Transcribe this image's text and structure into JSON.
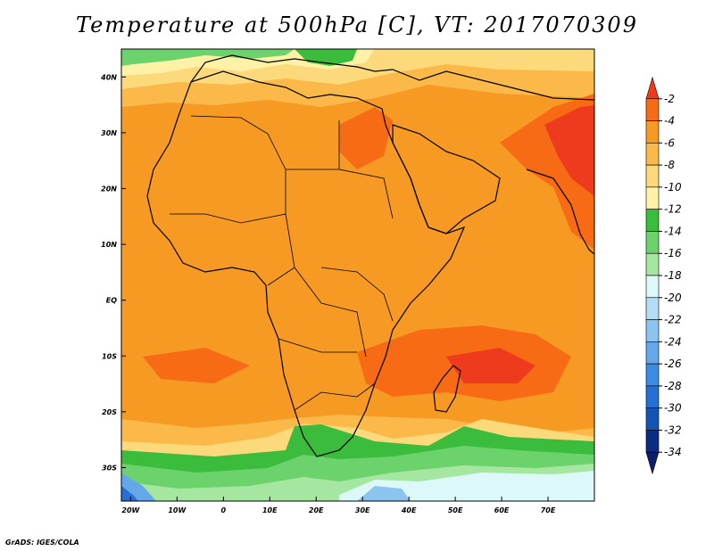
{
  "title": "Temperature at 500hPa [C], VT: 2017070309",
  "footer": "GrADS: IGES/COLA",
  "map": {
    "lon_range": [
      -22,
      80
    ],
    "lat_range": [
      -36,
      45
    ],
    "x_ticks": [
      "20W",
      "10W",
      "0",
      "10E",
      "20E",
      "30E",
      "40E",
      "50E",
      "60E",
      "70E"
    ],
    "y_ticks": [
      "40N",
      "30N",
      "20N",
      "10N",
      "EQ",
      "10S",
      "20S",
      "30S"
    ]
  },
  "colorbar": {
    "labels": [
      "-2",
      "-4",
      "-6",
      "-8",
      "-10",
      "-12",
      "-14",
      "-16",
      "-18",
      "-20",
      "-22",
      "-24",
      "-26",
      "-28",
      "-30",
      "-32",
      "-34"
    ],
    "colors": [
      "#ef3b1d",
      "#f76b14",
      "#f79a24",
      "#fbb94a",
      "#fcd97a",
      "#fff1a6",
      "#3cbc3c",
      "#6cd36c",
      "#a5e6a0",
      "#dcf8f8",
      "#b4dcf4",
      "#8cc4f0",
      "#64a8ea",
      "#3c8ce4",
      "#2470d4",
      "#1454b4",
      "#0c2c84",
      "#0a1e6c"
    ]
  }
}
